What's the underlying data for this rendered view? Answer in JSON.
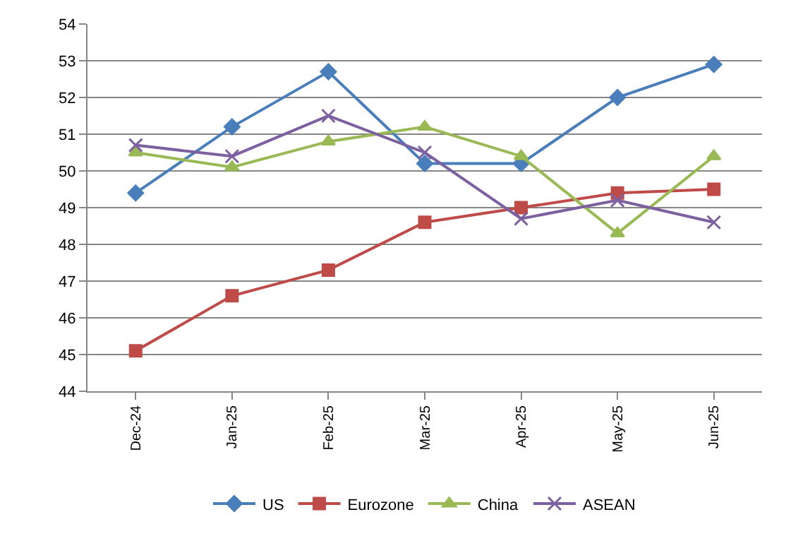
{
  "chart_data": {
    "type": "line",
    "categories": [
      "Dec-24",
      "Jan-25",
      "Feb-25",
      "Mar-25",
      "Apr-25",
      "May-25",
      "Jun-25"
    ],
    "series": [
      {
        "name": "US",
        "color": "#4a7ebb",
        "marker": "diamond",
        "values": [
          49.4,
          51.2,
          52.7,
          50.2,
          50.2,
          52.0,
          52.9
        ]
      },
      {
        "name": "Eurozone",
        "color": "#be4b48",
        "marker": "square",
        "values": [
          45.1,
          46.6,
          47.3,
          48.6,
          49.0,
          49.4,
          49.5
        ]
      },
      {
        "name": "China",
        "color": "#98b954",
        "marker": "triangle",
        "values": [
          50.5,
          50.1,
          50.8,
          51.2,
          50.4,
          48.3,
          50.4
        ]
      },
      {
        "name": "ASEAN",
        "color": "#7d60a0",
        "marker": "cross",
        "values": [
          50.7,
          50.4,
          51.5,
          50.5,
          48.7,
          49.2,
          48.6
        ]
      }
    ],
    "ylim": [
      44,
      54
    ],
    "yticks": [
      44,
      45,
      46,
      47,
      48,
      49,
      50,
      51,
      52,
      53,
      54
    ],
    "grid": "y",
    "legend": "bottom",
    "line_style": "solid"
  }
}
